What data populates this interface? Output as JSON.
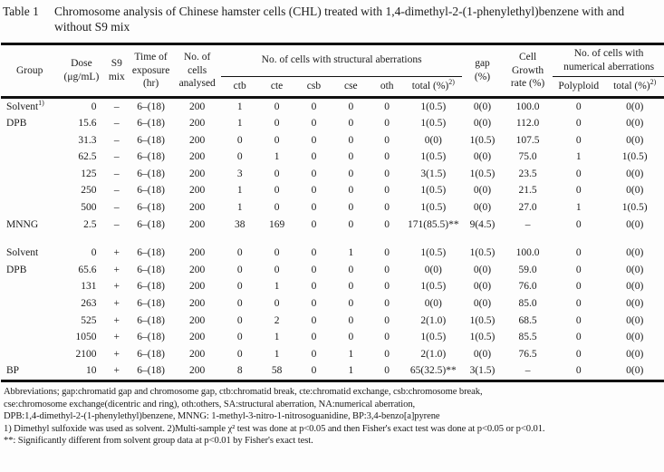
{
  "title": {
    "label": "Table 1",
    "caption": "Chromosome analysis of Chinese hamster cells (CHL) treated with 1,4-dimethyl-2-(1-phenylethyl)benzene with and without S9 mix"
  },
  "header": {
    "group": "Group",
    "dose": "Dose\n(μg/mL)",
    "s9": "S9\nmix",
    "time": "Time of\nexposure\n(hr)",
    "cells": "No. of\ncells\nanalysed",
    "sa_span": "No. of cells with structural aberrations",
    "gap": "gap\n(%)",
    "growth": "Cell\nGrowth\nrate (%)",
    "na_span": "No. of cells with\nnumerical aberrations",
    "ctb": "ctb",
    "cte": "cte",
    "csb": "csb",
    "cse": "cse",
    "oth": "oth",
    "total": "total (%)",
    "total_sup": "2)",
    "polyploid": "Polyploid"
  },
  "columns": [
    "group",
    "dose",
    "s9",
    "time",
    "cells",
    "ctb",
    "cte",
    "csb",
    "cse",
    "oth",
    "total_sa",
    "gap",
    "growth",
    "polyploid",
    "total_na"
  ],
  "rows": [
    {
      "group": "Solvent",
      "group_sup": "1)",
      "dose": "0",
      "s9": "–",
      "time": "6–(18)",
      "cells": "200",
      "ctb": "1",
      "cte": "0",
      "csb": "0",
      "cse": "0",
      "oth": "0",
      "total_sa": "1(0.5)",
      "gap": "0(0)",
      "growth": "100.0",
      "polyploid": "0",
      "total_na": "0(0)"
    },
    {
      "group": "DPB",
      "dose": "15.6",
      "s9": "–",
      "time": "6–(18)",
      "cells": "200",
      "ctb": "1",
      "cte": "0",
      "csb": "0",
      "cse": "0",
      "oth": "0",
      "total_sa": "1(0.5)",
      "gap": "0(0)",
      "growth": "112.0",
      "polyploid": "0",
      "total_na": "0(0)"
    },
    {
      "group": "",
      "dose": "31.3",
      "s9": "–",
      "time": "6–(18)",
      "cells": "200",
      "ctb": "0",
      "cte": "0",
      "csb": "0",
      "cse": "0",
      "oth": "0",
      "total_sa": "0(0)",
      "gap": "1(0.5)",
      "growth": "107.5",
      "polyploid": "0",
      "total_na": "0(0)"
    },
    {
      "group": "",
      "dose": "62.5",
      "s9": "–",
      "time": "6–(18)",
      "cells": "200",
      "ctb": "0",
      "cte": "1",
      "csb": "0",
      "cse": "0",
      "oth": "0",
      "total_sa": "1(0.5)",
      "gap": "0(0)",
      "growth": "75.0",
      "polyploid": "1",
      "total_na": "1(0.5)"
    },
    {
      "group": "",
      "dose": "125",
      "s9": "–",
      "time": "6–(18)",
      "cells": "200",
      "ctb": "3",
      "cte": "0",
      "csb": "0",
      "cse": "0",
      "oth": "0",
      "total_sa": "3(1.5)",
      "gap": "1(0.5)",
      "growth": "23.5",
      "polyploid": "0",
      "total_na": "0(0)"
    },
    {
      "group": "",
      "dose": "250",
      "s9": "–",
      "time": "6–(18)",
      "cells": "200",
      "ctb": "1",
      "cte": "0",
      "csb": "0",
      "cse": "0",
      "oth": "0",
      "total_sa": "1(0.5)",
      "gap": "0(0)",
      "growth": "21.5",
      "polyploid": "0",
      "total_na": "0(0)"
    },
    {
      "group": "",
      "dose": "500",
      "s9": "–",
      "time": "6–(18)",
      "cells": "200",
      "ctb": "1",
      "cte": "0",
      "csb": "0",
      "cse": "0",
      "oth": "0",
      "total_sa": "1(0.5)",
      "gap": "0(0)",
      "growth": "27.0",
      "polyploid": "1",
      "total_na": "1(0.5)"
    },
    {
      "group": "MNNG",
      "dose": "2.5",
      "s9": "–",
      "time": "6–(18)",
      "cells": "200",
      "ctb": "38",
      "cte": "169",
      "csb": "0",
      "cse": "0",
      "oth": "0",
      "total_sa": "171(85.5)**",
      "gap": "9(4.5)",
      "growth": "–",
      "polyploid": "0",
      "total_na": "0(0)"
    },
    {
      "spacer": true
    },
    {
      "group": "Solvent",
      "dose": "0",
      "s9": "+",
      "time": "6–(18)",
      "cells": "200",
      "ctb": "0",
      "cte": "0",
      "csb": "0",
      "cse": "1",
      "oth": "0",
      "total_sa": "1(0.5)",
      "gap": "1(0.5)",
      "growth": "100.0",
      "polyploid": "0",
      "total_na": "0(0)"
    },
    {
      "group": "DPB",
      "dose": "65.6",
      "s9": "+",
      "time": "6–(18)",
      "cells": "200",
      "ctb": "0",
      "cte": "0",
      "csb": "0",
      "cse": "0",
      "oth": "0",
      "total_sa": "0(0)",
      "gap": "0(0)",
      "growth": "59.0",
      "polyploid": "0",
      "total_na": "0(0)"
    },
    {
      "group": "",
      "dose": "131",
      "s9": "+",
      "time": "6–(18)",
      "cells": "200",
      "ctb": "0",
      "cte": "1",
      "csb": "0",
      "cse": "0",
      "oth": "0",
      "total_sa": "1(0.5)",
      "gap": "0(0)",
      "growth": "76.0",
      "polyploid": "0",
      "total_na": "0(0)"
    },
    {
      "group": "",
      "dose": "263",
      "s9": "+",
      "time": "6–(18)",
      "cells": "200",
      "ctb": "0",
      "cte": "0",
      "csb": "0",
      "cse": "0",
      "oth": "0",
      "total_sa": "0(0)",
      "gap": "0(0)",
      "growth": "85.0",
      "polyploid": "0",
      "total_na": "0(0)"
    },
    {
      "group": "",
      "dose": "525",
      "s9": "+",
      "time": "6–(18)",
      "cells": "200",
      "ctb": "0",
      "cte": "2",
      "csb": "0",
      "cse": "0",
      "oth": "0",
      "total_sa": "2(1.0)",
      "gap": "1(0.5)",
      "growth": "68.5",
      "polyploid": "0",
      "total_na": "0(0)"
    },
    {
      "group": "",
      "dose": "1050",
      "s9": "+",
      "time": "6–(18)",
      "cells": "200",
      "ctb": "0",
      "cte": "1",
      "csb": "0",
      "cse": "0",
      "oth": "0",
      "total_sa": "1(0.5)",
      "gap": "1(0.5)",
      "growth": "85.5",
      "polyploid": "0",
      "total_na": "0(0)"
    },
    {
      "group": "",
      "dose": "2100",
      "s9": "+",
      "time": "6–(18)",
      "cells": "200",
      "ctb": "0",
      "cte": "1",
      "csb": "0",
      "cse": "1",
      "oth": "0",
      "total_sa": "2(1.0)",
      "gap": "0(0)",
      "growth": "76.5",
      "polyploid": "0",
      "total_na": "0(0)"
    },
    {
      "group": "BP",
      "dose": "10",
      "s9": "+",
      "time": "6–(18)",
      "cells": "200",
      "ctb": "8",
      "cte": "58",
      "csb": "0",
      "cse": "1",
      "oth": "0",
      "total_sa": "65(32.5)**",
      "gap": "3(1.5)",
      "growth": "–",
      "polyploid": "0",
      "total_na": "0(0)"
    }
  ],
  "footnotes": [
    "Abbreviations; gap:chromatid gap and chromosome gap, ctb:chromatid break, cte:chromatid exchange, csb:chromosome break,",
    "cse:chromosome exchange(dicentric and ring), oth:others, SA:structural aberration, NA:numerical aberration,",
    "DPB:1,4-dimethyl-2-(1-phenylethyl)benzene, MNNG: 1-methyl-3-nitro-1-nitrosoguanidine, BP:3,4-benzo[a]pyrene",
    "1) Dimethyl sulfoxide was used as solvent. 2)Multi-sample χ² test was done at p<0.05 and then Fisher's exact test was done at p<0.05 or p<0.01.",
    "**: Significantly different from solvent group data at p<0.01 by Fisher's exact test."
  ]
}
